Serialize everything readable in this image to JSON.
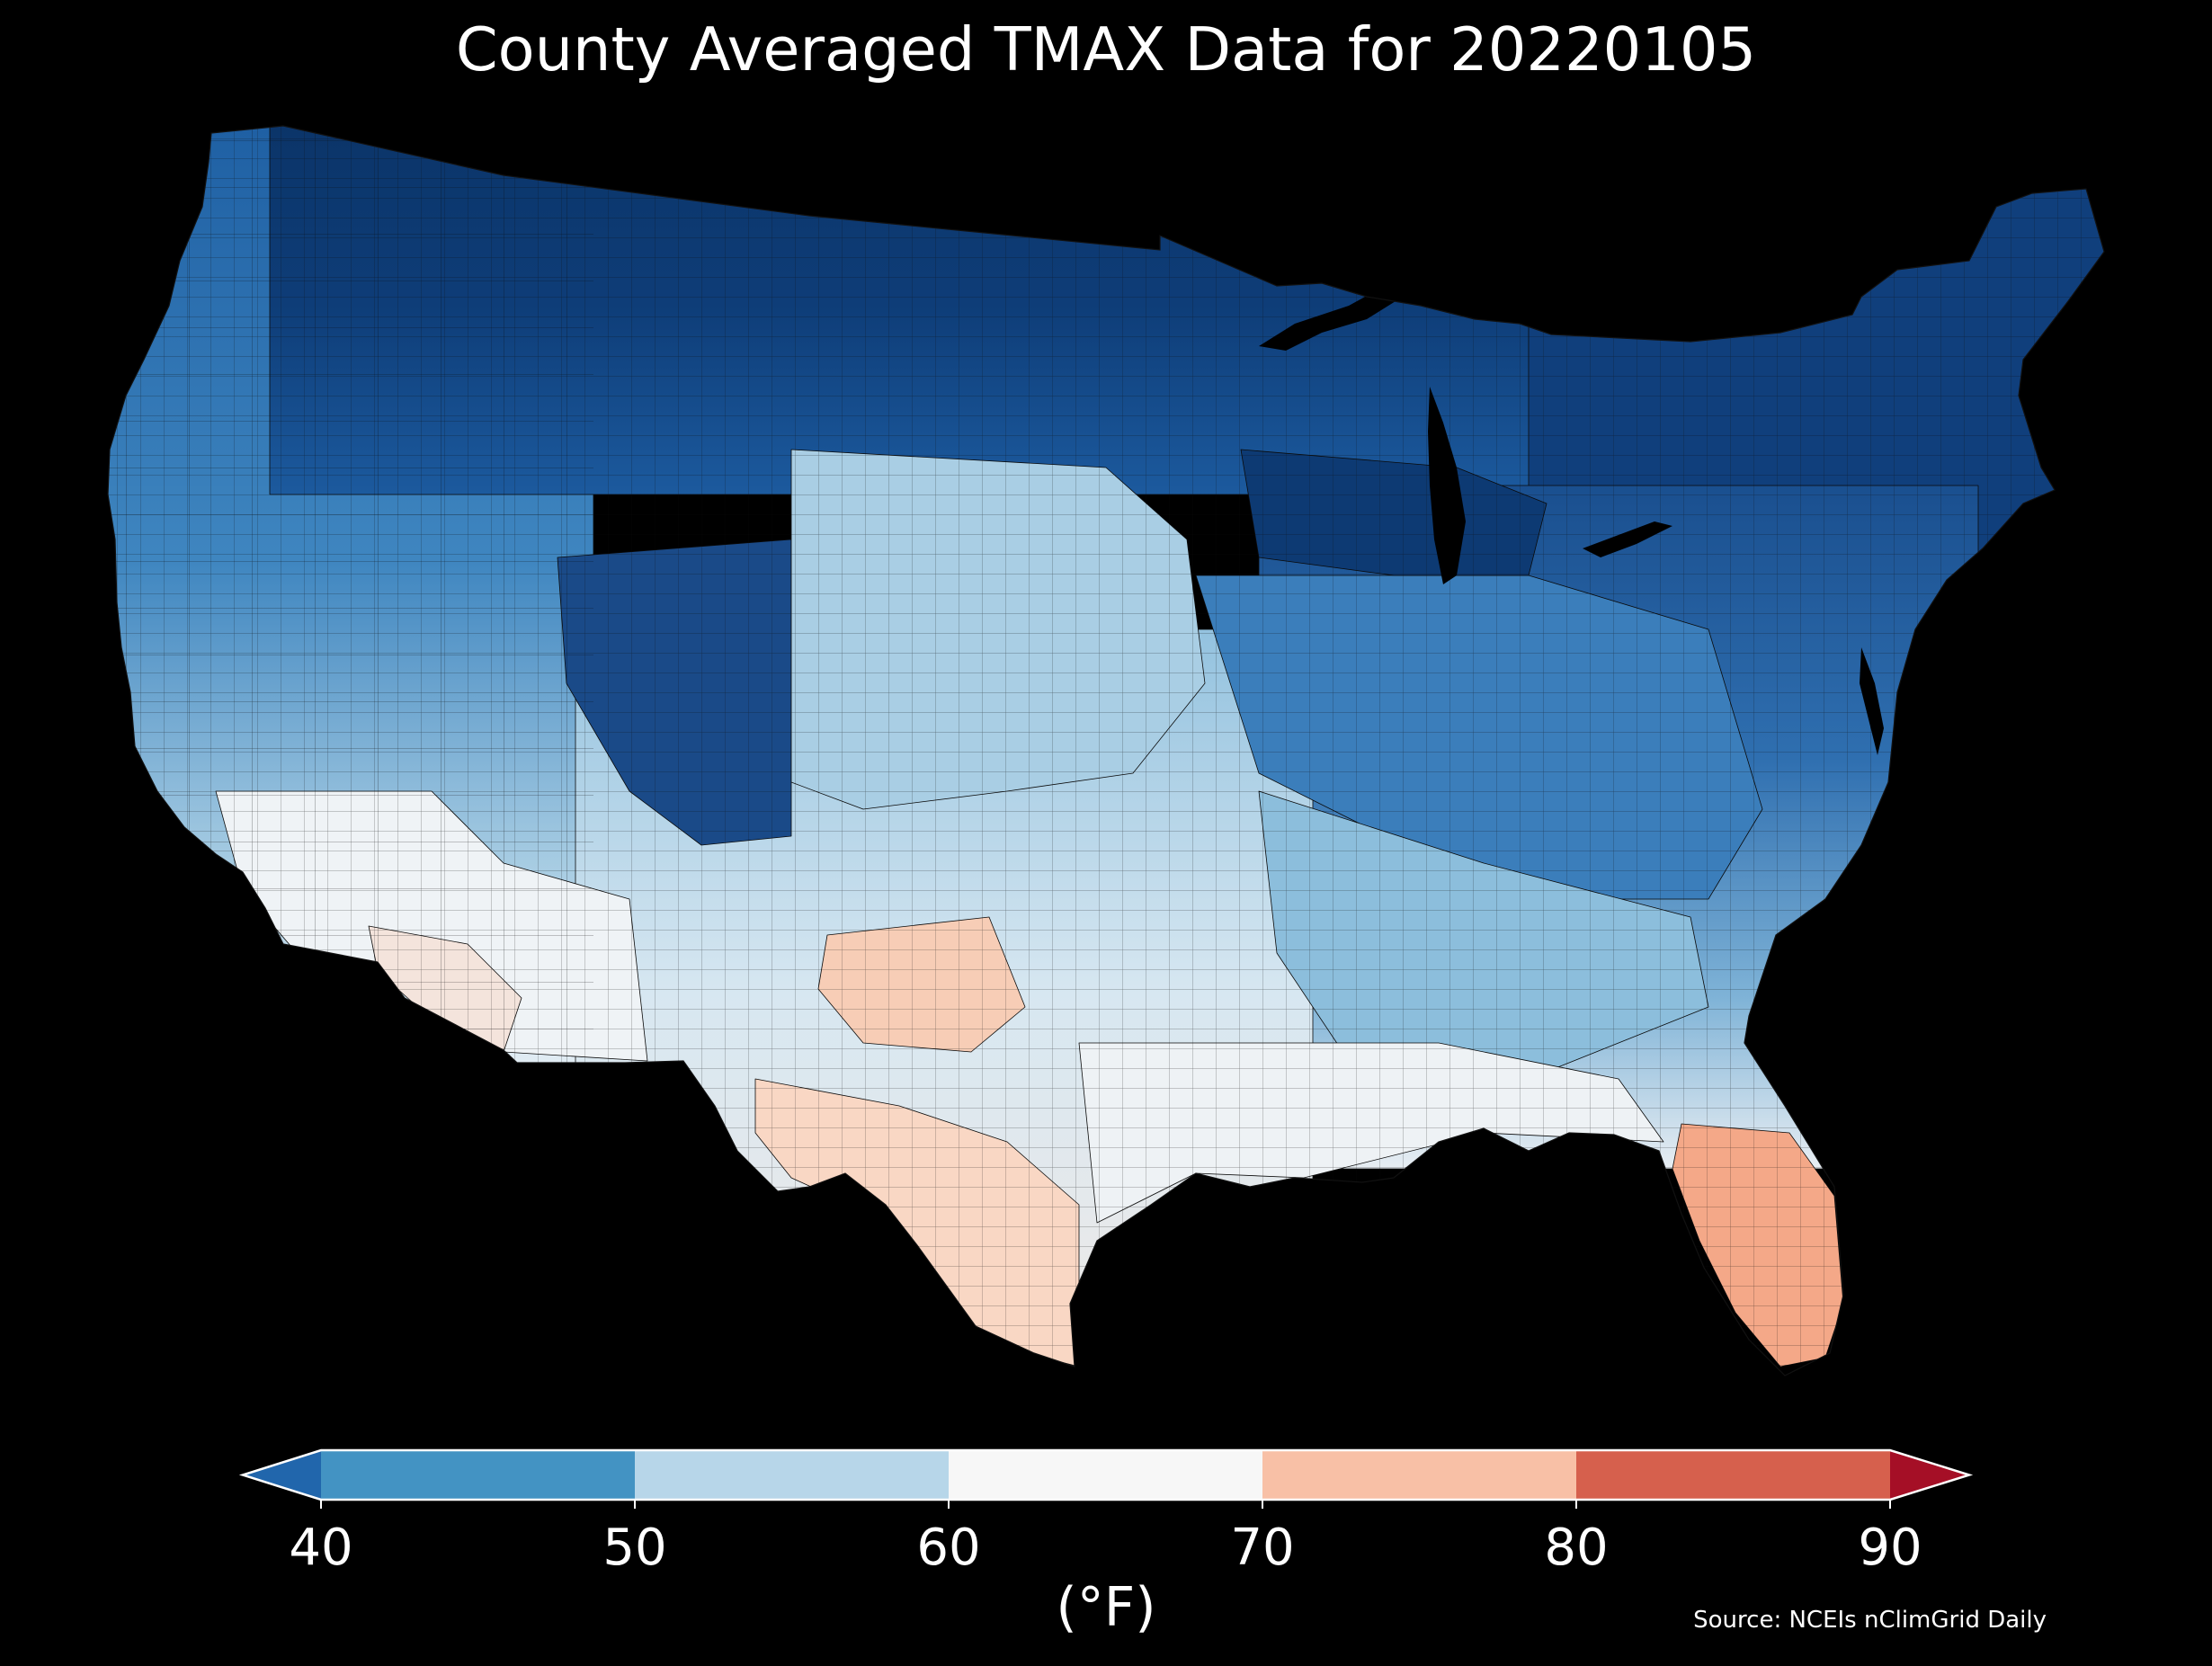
{
  "title": "County Averaged TMAX Data for 20220105",
  "colorbar": {
    "unit_label": "(°F)",
    "ticks": [
      "40",
      "50",
      "60",
      "70",
      "80",
      "90"
    ],
    "tick_values": [
      40,
      50,
      60,
      70,
      80,
      90
    ],
    "min": 40,
    "max": 90,
    "extend": "both",
    "bins": [
      {
        "from": 40,
        "to": 50,
        "color": "#4393c3"
      },
      {
        "from": 50,
        "to": 60,
        "color": "#b7d6e9"
      },
      {
        "from": 60,
        "to": 70,
        "color": "#f7f7f7"
      },
      {
        "from": 70,
        "to": 80,
        "color": "#f8c0a6"
      },
      {
        "from": 80,
        "to": 90,
        "color": "#d6604d"
      }
    ],
    "under_color": "#2166ac",
    "over_color": "#a50f26",
    "outline_color": "#ffffff"
  },
  "source": "Source: NCEIs nClimGrid Daily",
  "map": {
    "background": "#000000",
    "county_outline_color": "#0a0a0a"
  }
}
